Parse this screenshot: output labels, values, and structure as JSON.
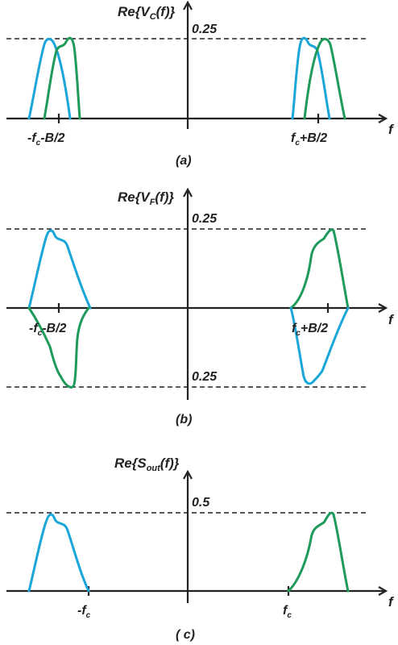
{
  "colors": {
    "blue": "#1aa6d8",
    "green": "#1e9a5a",
    "axis": "#222222"
  },
  "panel_a": {
    "y_title_pre": "Re{V",
    "y_title_sub": "C",
    "y_title_post": "(f)}",
    "peak": "0.25",
    "x_axis": "f",
    "tick_left_pre": "-f",
    "tick_left_sub": "c",
    "tick_left_post": "-B/2",
    "tick_right_pre": "f",
    "tick_right_sub": "c",
    "tick_right_post": "+B/2",
    "caption": "(a)"
  },
  "panel_b": {
    "y_title_pre": "Re{V",
    "y_title_sub": "F",
    "y_title_post": "(f)}",
    "peak_top": "0.25",
    "peak_bottom": "0.25",
    "x_axis": "f",
    "tick_left_pre": "-f",
    "tick_left_sub": "c",
    "tick_left_post": "-B/2",
    "tick_right_pre": "f",
    "tick_right_sub": "c",
    "tick_right_post": "+B/2",
    "caption": "(b)"
  },
  "panel_c": {
    "y_title_pre": "Re{S",
    "y_title_sub": "out",
    "y_title_post": "(f)}",
    "peak": "0.5",
    "x_axis": "f",
    "tick_left_pre": "-f",
    "tick_left_sub": "c",
    "tick_right_pre": "f",
    "tick_right_sub": "c",
    "caption": "( c)"
  }
}
